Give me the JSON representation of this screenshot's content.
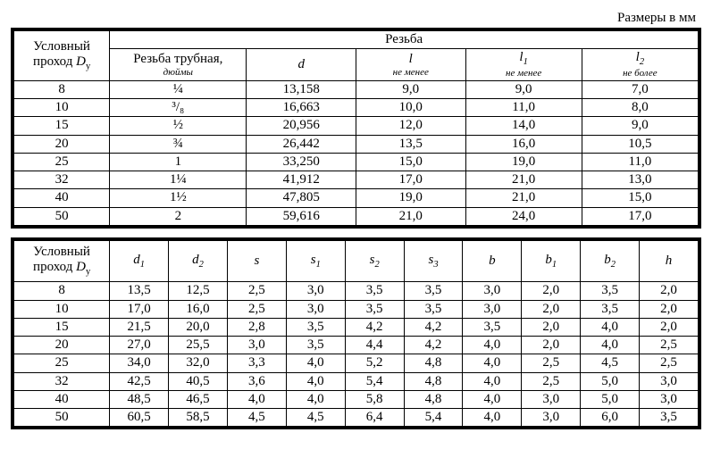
{
  "caption": "Размеры в мм",
  "table1": {
    "col_main": {
      "l1": "Условный",
      "l2_pre": "проход ",
      "l2_sym": "D",
      "l2_sub": "у"
    },
    "group_header": "Резьба",
    "headers": {
      "c1": {
        "main": "Резьба трубная,",
        "sub": "дюймы"
      },
      "c2": {
        "main": "d",
        "sub": ""
      },
      "c3": {
        "main": "l",
        "sub": "не менее"
      },
      "c4": {
        "main_sym": "l",
        "main_sub": "1",
        "sub": "не менее"
      },
      "c5": {
        "main_sym": "l",
        "main_sub": "2",
        "sub": "не более"
      }
    },
    "rows": [
      {
        "dy": "8",
        "thread": "¼",
        "d": "13,158",
        "l": "9,0",
        "l1": "9,0",
        "l2": "7,0"
      },
      {
        "dy": "10",
        "thread": "³/₈",
        "d": "16,663",
        "l": "10,0",
        "l1": "11,0",
        "l2": "8,0"
      },
      {
        "dy": "15",
        "thread": "½",
        "d": "20,956",
        "l": "12,0",
        "l1": "14,0",
        "l2": "9,0"
      },
      {
        "dy": "20",
        "thread": "¾",
        "d": "26,442",
        "l": "13,5",
        "l1": "16,0",
        "l2": "10,5"
      },
      {
        "dy": "25",
        "thread": "1",
        "d": "33,250",
        "l": "15,0",
        "l1": "19,0",
        "l2": "11,0"
      },
      {
        "dy": "32",
        "thread": "1¼",
        "d": "41,912",
        "l": "17,0",
        "l1": "21,0",
        "l2": "13,0"
      },
      {
        "dy": "40",
        "thread": "1½",
        "d": "47,805",
        "l": "19,0",
        "l1": "21,0",
        "l2": "15,0"
      },
      {
        "dy": "50",
        "thread": "2",
        "d": "59,616",
        "l": "21,0",
        "l1": "24,0",
        "l2": "17,0"
      }
    ]
  },
  "table2": {
    "col_main": {
      "l1": "Условный",
      "l2_pre": "проход ",
      "l2_sym": "D",
      "l2_sub": "у"
    },
    "headers": {
      "d1": {
        "sym": "d",
        "sub": "1"
      },
      "d2": {
        "sym": "d",
        "sub": "2"
      },
      "s": {
        "sym": "s",
        "sub": ""
      },
      "s1": {
        "sym": "s",
        "sub": "1"
      },
      "s2": {
        "sym": "s",
        "sub": "2"
      },
      "s3": {
        "sym": "s",
        "sub": "3"
      },
      "b": {
        "sym": "b",
        "sub": ""
      },
      "b1": {
        "sym": "b",
        "sub": "1"
      },
      "b2": {
        "sym": "b",
        "sub": "2"
      },
      "h": {
        "sym": "h",
        "sub": ""
      }
    },
    "rows": [
      {
        "dy": "8",
        "d1": "13,5",
        "d2": "12,5",
        "s": "2,5",
        "s1": "3,0",
        "s2": "3,5",
        "s3": "3,5",
        "b": "3,0",
        "b1": "2,0",
        "b2": "3,5",
        "h": "2,0"
      },
      {
        "dy": "10",
        "d1": "17,0",
        "d2": "16,0",
        "s": "2,5",
        "s1": "3,0",
        "s2": "3,5",
        "s3": "3,5",
        "b": "3,0",
        "b1": "2,0",
        "b2": "3,5",
        "h": "2,0"
      },
      {
        "dy": "15",
        "d1": "21,5",
        "d2": "20,0",
        "s": "2,8",
        "s1": "3,5",
        "s2": "4,2",
        "s3": "4,2",
        "b": "3,5",
        "b1": "2,0",
        "b2": "4,0",
        "h": "2,0"
      },
      {
        "dy": "20",
        "d1": "27,0",
        "d2": "25,5",
        "s": "3,0",
        "s1": "3,5",
        "s2": "4,4",
        "s3": "4,2",
        "b": "4,0",
        "b1": "2,0",
        "b2": "4,0",
        "h": "2,5"
      },
      {
        "dy": "25",
        "d1": "34,0",
        "d2": "32,0",
        "s": "3,3",
        "s1": "4,0",
        "s2": "5,2",
        "s3": "4,8",
        "b": "4,0",
        "b1": "2,5",
        "b2": "4,5",
        "h": "2,5"
      },
      {
        "dy": "32",
        "d1": "42,5",
        "d2": "40,5",
        "s": "3,6",
        "s1": "4,0",
        "s2": "5,4",
        "s3": "4,8",
        "b": "4,0",
        "b1": "2,5",
        "b2": "5,0",
        "h": "3,0"
      },
      {
        "dy": "40",
        "d1": "48,5",
        "d2": "46,5",
        "s": "4,0",
        "s1": "4,0",
        "s2": "5,8",
        "s3": "4,8",
        "b": "4,0",
        "b1": "3,0",
        "b2": "5,0",
        "h": "3,0"
      },
      {
        "dy": "50",
        "d1": "60,5",
        "d2": "58,5",
        "s": "4,5",
        "s1": "4,5",
        "s2": "6,4",
        "s3": "5,4",
        "b": "4,0",
        "b1": "3,0",
        "b2": "6,0",
        "h": "3,5"
      }
    ]
  }
}
